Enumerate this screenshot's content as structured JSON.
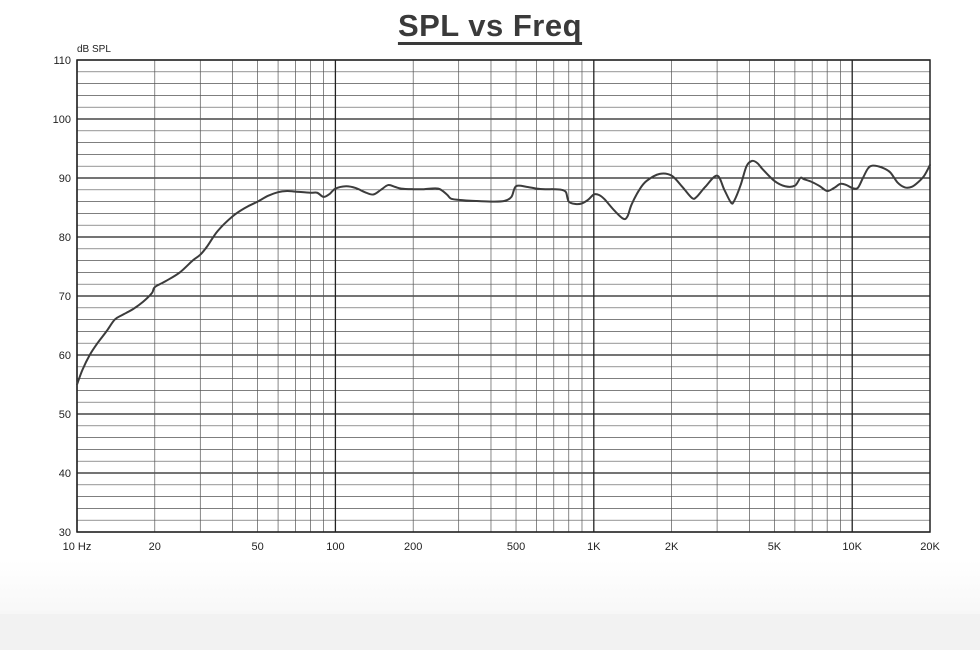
{
  "chart_data": {
    "type": "line",
    "title": "SPL vs Freq",
    "ylabel": "dB SPL",
    "xscale": "log",
    "xlim": [
      10,
      20000
    ],
    "ylim": [
      30,
      110
    ],
    "grid": true,
    "x_tick_labels": [
      {
        "value": 10,
        "label": "10 Hz"
      },
      {
        "value": 20,
        "label": "20"
      },
      {
        "value": 50,
        "label": "50"
      },
      {
        "value": 100,
        "label": "100"
      },
      {
        "value": 200,
        "label": "200"
      },
      {
        "value": 500,
        "label": "500"
      },
      {
        "value": 1000,
        "label": "1K"
      },
      {
        "value": 2000,
        "label": "2K"
      },
      {
        "value": 5000,
        "label": "5K"
      },
      {
        "value": 10000,
        "label": "10K"
      },
      {
        "value": 20000,
        "label": "20K"
      }
    ],
    "y_ticks": [
      30,
      40,
      50,
      60,
      70,
      80,
      90,
      100,
      110
    ],
    "series": [
      {
        "color": "#3c3c3c",
        "x": [
          10,
          10.5,
          11.2,
          12,
          13,
          14,
          15,
          16.5,
          18,
          19.5,
          20,
          22,
          25,
          28,
          30,
          32,
          35,
          40,
          45,
          50,
          55,
          60,
          65,
          70,
          80,
          85,
          90,
          95,
          100,
          110,
          120,
          130,
          140,
          150,
          160,
          170,
          180,
          200,
          220,
          250,
          270,
          280,
          300,
          350,
          400,
          450,
          480,
          500,
          550,
          600,
          650,
          700,
          750,
          780,
          800,
          850,
          900,
          950,
          1000,
          1050,
          1100,
          1200,
          1300,
          1350,
          1400,
          1500,
          1600,
          1800,
          2000,
          2200,
          2400,
          2500,
          2700,
          3000,
          3200,
          3400,
          3500,
          3700,
          3900,
          4100,
          4300,
          4500,
          5000,
          5500,
          6000,
          6300,
          6500,
          7000,
          7500,
          8000,
          8500,
          9000,
          9500,
          10000,
          10500,
          11000,
          11500,
          12000,
          13000,
          14000,
          15000,
          16000,
          17000,
          18000,
          19000,
          20000
        ],
        "y": [
          55,
          57.5,
          60,
          62,
          64,
          66,
          66.8,
          67.8,
          69,
          70.5,
          71.5,
          72.5,
          74,
          76,
          77,
          78.5,
          81,
          83.5,
          85,
          86,
          87,
          87.6,
          87.8,
          87.7,
          87.5,
          87.5,
          86.8,
          87.3,
          88.2,
          88.6,
          88.3,
          87.6,
          87.2,
          88,
          88.8,
          88.5,
          88.2,
          88.1,
          88.1,
          88.2,
          87.2,
          86.5,
          86.3,
          86.1,
          86,
          86.1,
          86.8,
          88.6,
          88.5,
          88.2,
          88.1,
          88.1,
          88,
          87.6,
          86,
          85.6,
          85.7,
          86.3,
          87.2,
          87.1,
          86.4,
          84.5,
          83.1,
          83.5,
          85.5,
          88,
          89.5,
          90.7,
          90.4,
          88.5,
          86.6,
          86.8,
          88.5,
          90.4,
          88,
          85.8,
          86.2,
          88.8,
          92,
          92.9,
          92.5,
          91.5,
          89.5,
          88.6,
          88.7,
          90,
          89.8,
          89.3,
          88.6,
          87.8,
          88.3,
          89,
          88.8,
          88.3,
          88.3,
          90,
          91.6,
          92.1,
          91.8,
          91,
          89.2,
          88.4,
          88.5,
          89.3,
          90.4,
          92.2
        ]
      }
    ]
  }
}
